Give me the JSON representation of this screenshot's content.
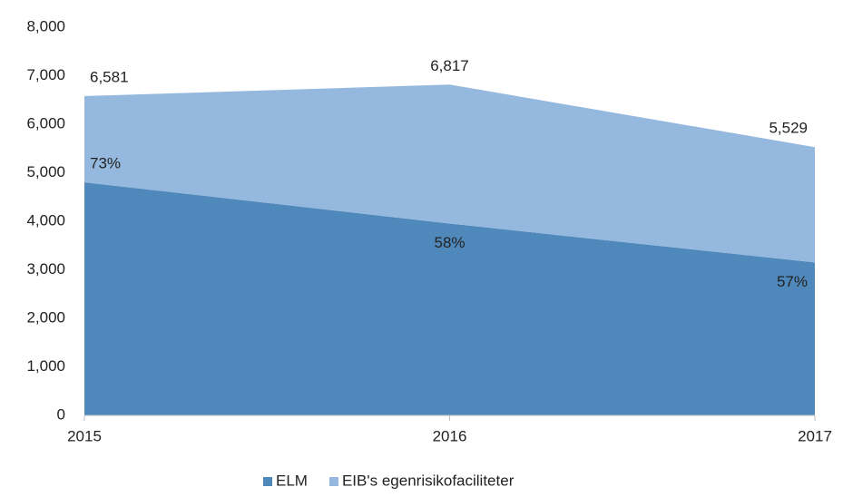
{
  "chart_data": {
    "type": "stacked_area",
    "categories": [
      "2015",
      "2016",
      "2017"
    ],
    "series": [
      {
        "name": "ELM",
        "color": "#4f88bb",
        "values": [
          4804,
          3954,
          3152
        ]
      },
      {
        "name": "EIB's egenrisikofaciliteter",
        "color": "#95b8de",
        "values": [
          1777,
          2863,
          2377
        ]
      }
    ],
    "totals": [
      6581,
      6817,
      5529
    ],
    "total_labels": [
      "6,581",
      "6,817",
      "5,529"
    ],
    "share_labels": [
      "73%",
      "58%",
      "57%"
    ],
    "ylim": [
      0,
      8000
    ],
    "yticks": [
      0,
      {
        "value": 1000,
        "label": "1,000"
      },
      {
        "value": 2000,
        "label": "2,000"
      },
      {
        "value": 3000,
        "label": "3,000"
      },
      {
        "value": 4000,
        "label": "4,000"
      },
      {
        "value": 5000,
        "label": "5,000"
      },
      {
        "value": 6000,
        "label": "6,000"
      },
      {
        "value": 7000,
        "label": "7,000"
      },
      {
        "value": 8000,
        "label": "8,000"
      }
    ],
    "grid": false,
    "legend": "bottom"
  }
}
